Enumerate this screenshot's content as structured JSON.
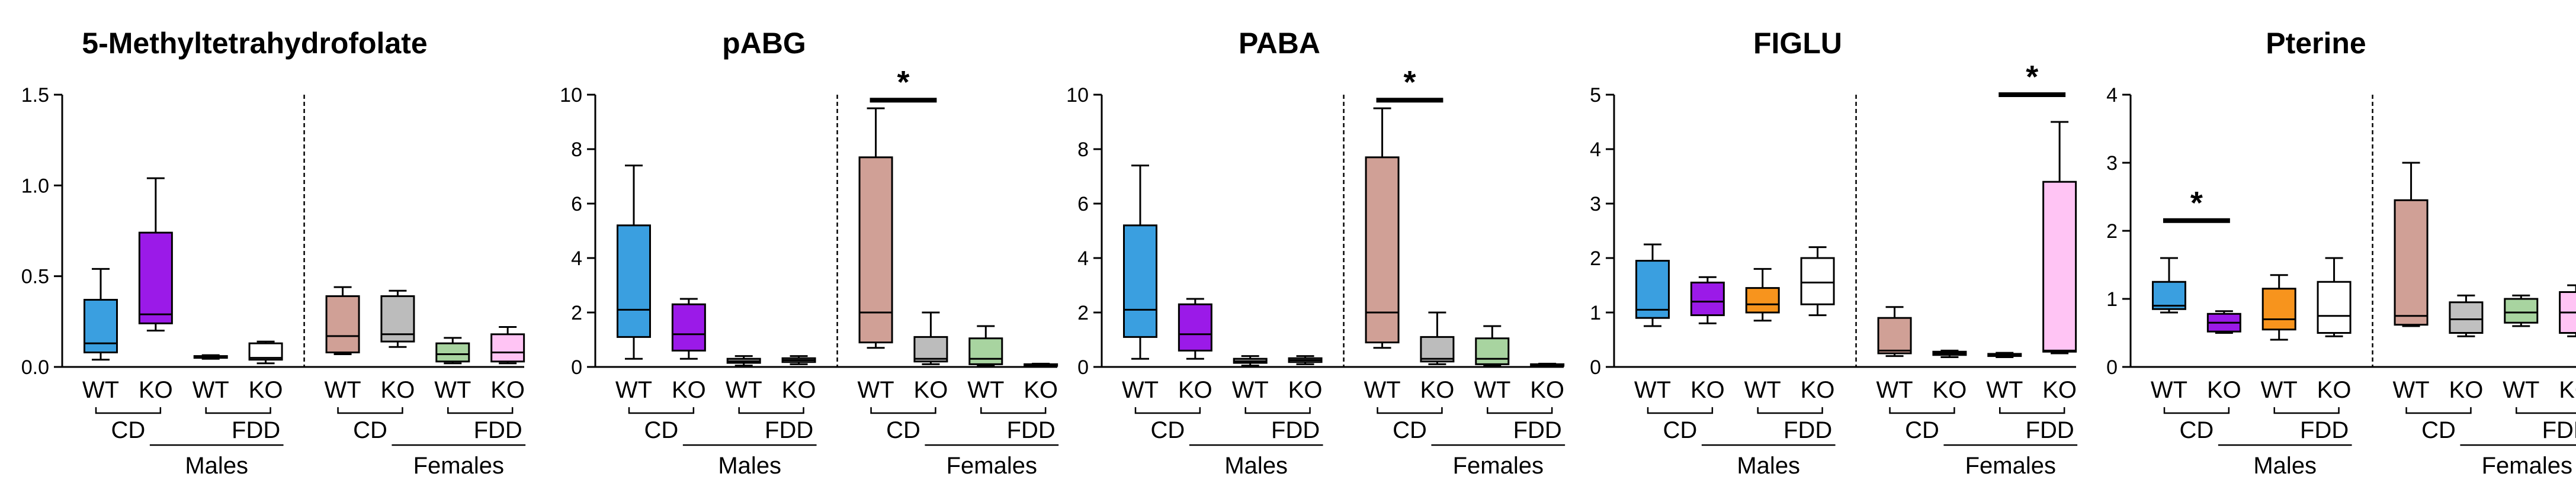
{
  "colors": {
    "WT_CD_M": "#3a9fe0",
    "KO_CD_M": "#9b1ae8",
    "WT_FDD_M": "#8a8a8a",
    "KO_FDD_M": "#ffffff",
    "WT_CD_F": "#d0a096",
    "KO_CD_F": "#bcbcbc",
    "WT_FDD_F": "#a8d4a0",
    "KO_FDD_F": "#ffc4f4",
    "orange": "#f7941d",
    "grayBox": "#c0c0c0"
  },
  "labels": {
    "wt": "WT",
    "ko": "KO",
    "cd": "CD",
    "fdd": "FDD",
    "males": "Males",
    "females": "Females",
    "star": "*"
  },
  "chart_data": [
    {
      "type": "box",
      "title": "5-Methyltetrahydrofolate",
      "ylim": [
        0,
        1.5
      ],
      "yticks": [
        "0.0",
        "0.5",
        "1.0",
        "1.5"
      ],
      "groups": [
        "WT CD Males",
        "KO CD Males",
        "WT FDD Males",
        "KO FDD Males",
        "WT CD Females",
        "KO CD Females",
        "WT FDD Females",
        "KO FDD Females"
      ],
      "fills": [
        "WT_CD_M",
        "KO_CD_M",
        "WT_FDD_M",
        "KO_FDD_M",
        "WT_CD_F",
        "KO_CD_F",
        "WT_FDD_F",
        "KO_FDD_F"
      ],
      "boxes": [
        {
          "min": 0.04,
          "q1": 0.08,
          "median": 0.13,
          "q3": 0.37,
          "max": 0.54
        },
        {
          "min": 0.2,
          "q1": 0.24,
          "median": 0.29,
          "q3": 0.74,
          "max": 1.04
        },
        {
          "min": 0.045,
          "q1": 0.05,
          "median": 0.055,
          "q3": 0.06,
          "max": 0.065
        },
        {
          "min": 0.02,
          "q1": 0.04,
          "median": 0.05,
          "q3": 0.13,
          "max": 0.14
        },
        {
          "min": 0.07,
          "q1": 0.08,
          "median": 0.17,
          "q3": 0.39,
          "max": 0.44
        },
        {
          "min": 0.11,
          "q1": 0.14,
          "median": 0.18,
          "q3": 0.39,
          "max": 0.42
        },
        {
          "min": 0.02,
          "q1": 0.03,
          "median": 0.07,
          "q3": 0.13,
          "max": 0.16
        },
        {
          "min": 0.02,
          "q1": 0.03,
          "median": 0.08,
          "q3": 0.18,
          "max": 0.22
        }
      ],
      "significance": []
    },
    {
      "type": "box",
      "title": "pABG",
      "ylim": [
        0,
        10
      ],
      "yticks": [
        "0",
        "2",
        "4",
        "6",
        "8",
        "10"
      ],
      "groups": [
        "WT CD Males",
        "KO CD Males",
        "WT FDD Males",
        "KO FDD Males",
        "WT CD Females",
        "KO CD Females",
        "WT FDD Females",
        "KO FDD Females"
      ],
      "fills": [
        "WT_CD_M",
        "KO_CD_M",
        "WT_FDD_M",
        "KO_FDD_M",
        "WT_CD_F",
        "KO_CD_F",
        "WT_FDD_F",
        "KO_FDD_F"
      ],
      "boxes": [
        {
          "min": 0.3,
          "q1": 1.1,
          "median": 2.1,
          "q3": 5.2,
          "max": 7.4
        },
        {
          "min": 0.3,
          "q1": 0.6,
          "median": 1.2,
          "q3": 2.3,
          "max": 2.5
        },
        {
          "min": 0.05,
          "q1": 0.15,
          "median": 0.2,
          "q3": 0.3,
          "max": 0.4
        },
        {
          "min": 0.1,
          "q1": 0.18,
          "median": 0.25,
          "q3": 0.32,
          "max": 0.4
        },
        {
          "min": 0.7,
          "q1": 0.9,
          "median": 2.0,
          "q3": 7.7,
          "max": 9.5
        },
        {
          "min": 0.1,
          "q1": 0.2,
          "median": 0.3,
          "q3": 1.1,
          "max": 2.0
        },
        {
          "min": 0.05,
          "q1": 0.1,
          "median": 0.3,
          "q3": 1.05,
          "max": 1.5
        },
        {
          "min": 0.02,
          "q1": 0.04,
          "median": 0.06,
          "q3": 0.1,
          "max": 0.12
        }
      ],
      "significance": [
        {
          "from": 4,
          "to": 5,
          "label": "*",
          "y": 9.8
        }
      ]
    },
    {
      "type": "box",
      "title": "PABA",
      "ylim": [
        0,
        10
      ],
      "yticks": [
        "0",
        "2",
        "4",
        "6",
        "8",
        "10"
      ],
      "groups": [
        "WT CD Males",
        "KO CD Males",
        "WT FDD Males",
        "KO FDD Males",
        "WT CD Females",
        "KO CD Females",
        "WT FDD Females",
        "KO FDD Females"
      ],
      "fills": [
        "WT_CD_M",
        "KO_CD_M",
        "WT_FDD_M",
        "KO_FDD_M",
        "WT_CD_F",
        "KO_CD_F",
        "WT_FDD_F",
        "KO_FDD_F"
      ],
      "boxes": [
        {
          "min": 0.3,
          "q1": 1.1,
          "median": 2.1,
          "q3": 5.2,
          "max": 7.4
        },
        {
          "min": 0.3,
          "q1": 0.6,
          "median": 1.2,
          "q3": 2.3,
          "max": 2.5
        },
        {
          "min": 0.05,
          "q1": 0.15,
          "median": 0.2,
          "q3": 0.3,
          "max": 0.4
        },
        {
          "min": 0.1,
          "q1": 0.18,
          "median": 0.25,
          "q3": 0.32,
          "max": 0.4
        },
        {
          "min": 0.7,
          "q1": 0.9,
          "median": 2.0,
          "q3": 7.7,
          "max": 9.5
        },
        {
          "min": 0.1,
          "q1": 0.2,
          "median": 0.3,
          "q3": 1.1,
          "max": 2.0
        },
        {
          "min": 0.05,
          "q1": 0.1,
          "median": 0.3,
          "q3": 1.05,
          "max": 1.5
        },
        {
          "min": 0.02,
          "q1": 0.04,
          "median": 0.06,
          "q3": 0.1,
          "max": 0.12
        }
      ],
      "significance": [
        {
          "from": 4,
          "to": 5,
          "label": "*",
          "y": 9.8
        }
      ]
    },
    {
      "type": "box",
      "title": "FIGLU",
      "ylim": [
        0,
        5
      ],
      "yticks": [
        "0",
        "1",
        "2",
        "3",
        "4",
        "5"
      ],
      "groups": [
        "WT CD Males",
        "KO CD Males",
        "WT FDD Males",
        "KO FDD Males",
        "WT CD Females",
        "KO CD Females",
        "WT FDD Females",
        "KO FDD Females"
      ],
      "fills": [
        "WT_CD_M",
        "KO_CD_M",
        "orange",
        "KO_FDD_M",
        "WT_CD_F",
        "grayBox",
        "WT_FDD_M",
        "KO_FDD_F"
      ],
      "boxes": [
        {
          "min": 0.75,
          "q1": 0.9,
          "median": 1.05,
          "q3": 1.95,
          "max": 2.25
        },
        {
          "min": 0.8,
          "q1": 0.95,
          "median": 1.2,
          "q3": 1.55,
          "max": 1.65
        },
        {
          "min": 0.85,
          "q1": 1.0,
          "median": 1.15,
          "q3": 1.45,
          "max": 1.8
        },
        {
          "min": 0.95,
          "q1": 1.15,
          "median": 1.55,
          "q3": 2.0,
          "max": 2.2
        },
        {
          "min": 0.2,
          "q1": 0.25,
          "median": 0.3,
          "q3": 0.9,
          "max": 1.1
        },
        {
          "min": 0.18,
          "q1": 0.22,
          "median": 0.25,
          "q3": 0.28,
          "max": 0.3
        },
        {
          "min": 0.18,
          "q1": 0.2,
          "median": 0.22,
          "q3": 0.24,
          "max": 0.26
        },
        {
          "min": 0.25,
          "q1": 0.28,
          "median": 0.3,
          "q3": 3.4,
          "max": 4.5
        }
      ],
      "significance": [
        {
          "from": 6,
          "to": 7,
          "label": "*",
          "y": 5.0
        }
      ]
    },
    {
      "type": "box",
      "title": "Pterine",
      "ylim": [
        0,
        4
      ],
      "yticks": [
        "0",
        "1",
        "2",
        "3",
        "4"
      ],
      "groups": [
        "WT CD Males",
        "KO CD Males",
        "WT FDD Males",
        "KO FDD Males",
        "WT CD Females",
        "KO CD Females",
        "WT FDD Females",
        "KO FDD Females"
      ],
      "fills": [
        "WT_CD_M",
        "KO_CD_M",
        "orange",
        "KO_FDD_M",
        "WT_CD_F",
        "grayBox",
        "WT_FDD_F",
        "KO_FDD_F"
      ],
      "boxes": [
        {
          "min": 0.8,
          "q1": 0.85,
          "median": 0.9,
          "q3": 1.25,
          "max": 1.6
        },
        {
          "min": 0.5,
          "q1": 0.52,
          "median": 0.65,
          "q3": 0.78,
          "max": 0.82
        },
        {
          "min": 0.4,
          "q1": 0.55,
          "median": 0.7,
          "q3": 1.15,
          "max": 1.35
        },
        {
          "min": 0.45,
          "q1": 0.5,
          "median": 0.75,
          "q3": 1.25,
          "max": 1.6
        },
        {
          "min": 0.6,
          "q1": 0.62,
          "median": 0.75,
          "q3": 2.45,
          "max": 3.0
        },
        {
          "min": 0.45,
          "q1": 0.5,
          "median": 0.7,
          "q3": 0.95,
          "max": 1.05
        },
        {
          "min": 0.6,
          "q1": 0.65,
          "median": 0.8,
          "q3": 1.0,
          "max": 1.05
        },
        {
          "min": 0.45,
          "q1": 0.5,
          "median": 0.8,
          "q3": 1.1,
          "max": 1.2
        }
      ],
      "significance": [
        {
          "from": 0,
          "to": 1,
          "label": "*",
          "y": 2.15
        }
      ]
    }
  ]
}
